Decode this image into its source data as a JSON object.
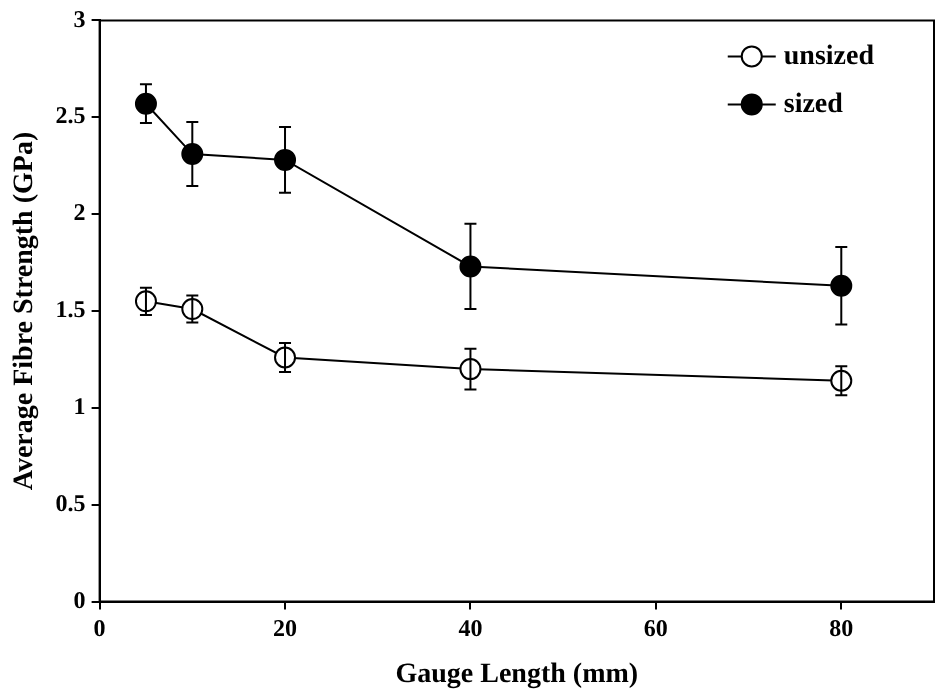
{
  "chart_data": {
    "type": "line",
    "xlabel": "Gauge Length (mm)",
    "ylabel": "Average Fibre Strength (GPa)",
    "x": [
      5,
      10,
      20,
      40,
      80
    ],
    "series": [
      {
        "name": "unsized",
        "color": "#ffffff",
        "values": [
          1.55,
          1.51,
          1.26,
          1.2,
          1.14
        ],
        "errors": [
          0.07,
          0.07,
          0.075,
          0.105,
          0.075
        ]
      },
      {
        "name": "sized",
        "color": "#000000",
        "values": [
          2.57,
          2.31,
          2.28,
          1.73,
          1.63
        ],
        "errors": [
          0.1,
          0.165,
          0.17,
          0.22,
          0.2
        ]
      }
    ],
    "xlim": [
      0,
      90
    ],
    "xticks": [
      0,
      20,
      40,
      60,
      80
    ],
    "ylim": [
      0,
      3
    ],
    "yticks": [
      0,
      0.5,
      1,
      1.5,
      2,
      2.5,
      3
    ],
    "grid": false,
    "legend": "top right",
    "marker": "circle",
    "line_style": "solid"
  }
}
